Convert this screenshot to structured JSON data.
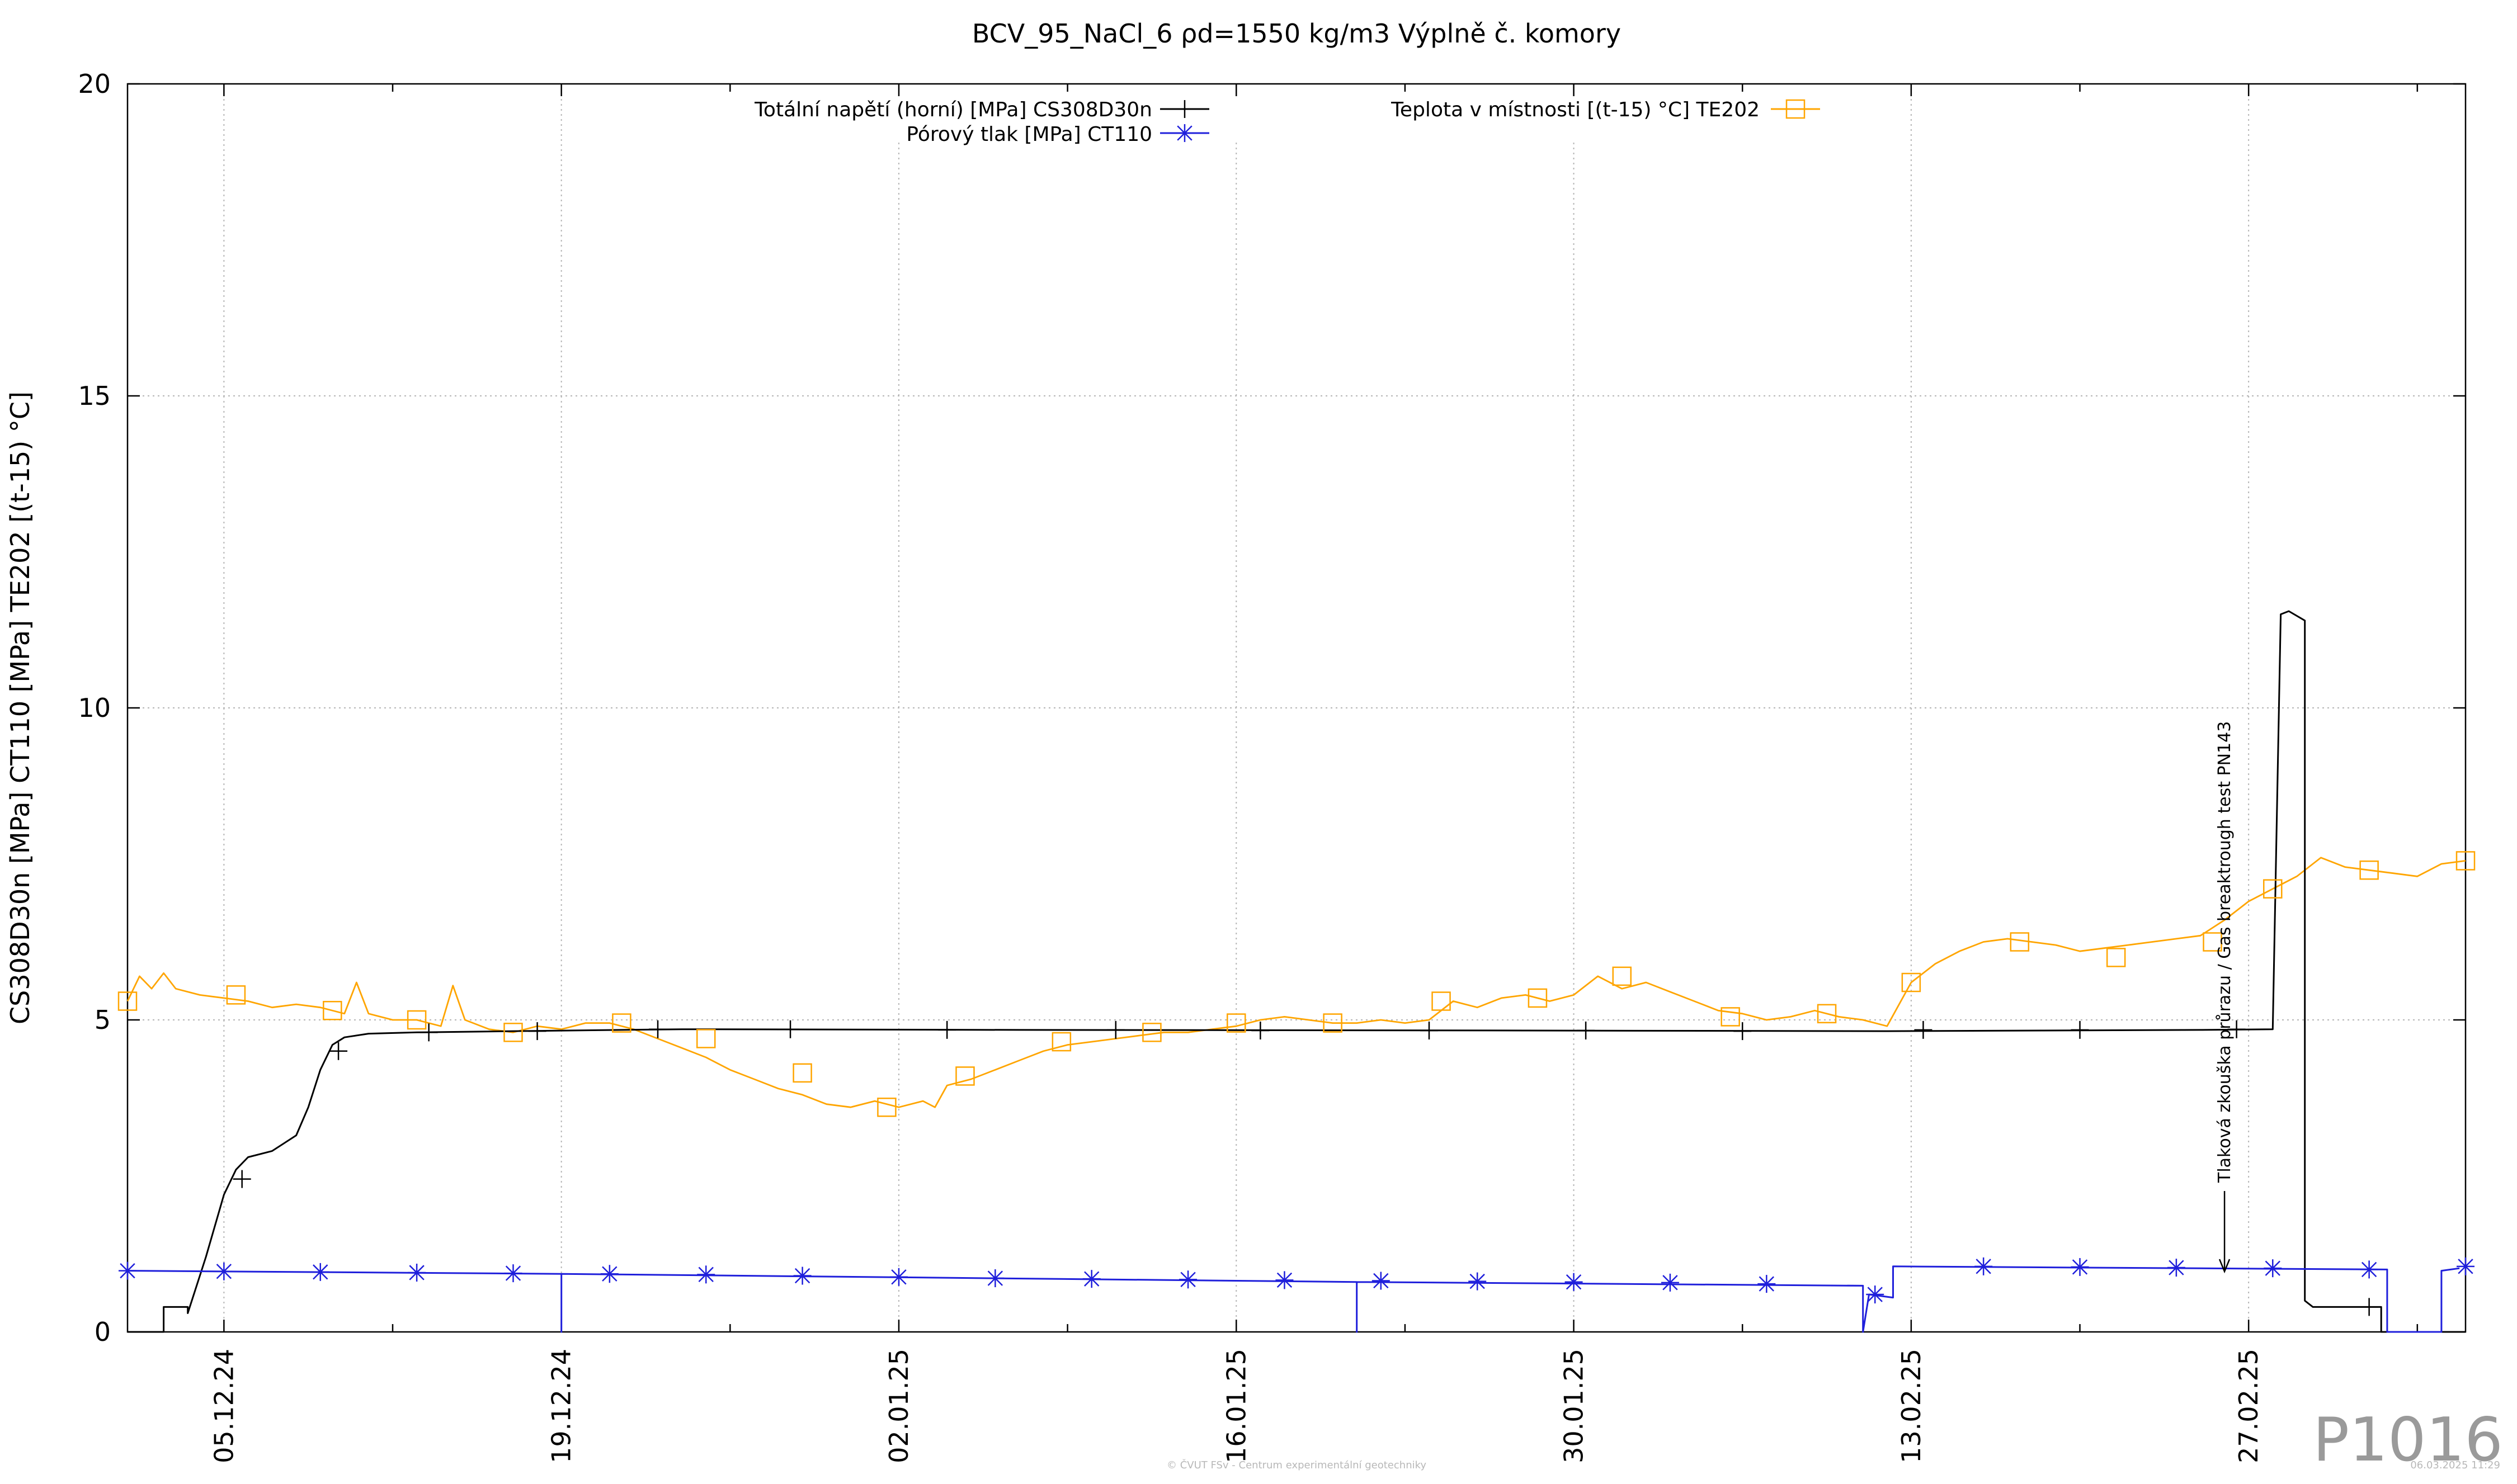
{
  "chart_data": {
    "type": "line",
    "title": "BCV_95_NaCl_6 ρd=1550 kg/m3 Výplně č. komory",
    "xlabel": "",
    "ylabel": "CS308D30n [MPa] CT110 [MPa] TE202 [(t-15) °C]",
    "xlim": [
      "2024-12-01",
      "2025-03-08"
    ],
    "ylim": [
      0,
      20
    ],
    "yticks": [
      0,
      5,
      10,
      15,
      20
    ],
    "xticks": [
      "2024-12-05",
      "2024-12-19",
      "2025-01-02",
      "2025-01-16",
      "2025-01-30",
      "2025-02-13",
      "2025-02-27"
    ],
    "xtick_labels": [
      "05.12.24",
      "19.12.24",
      "02.01.25",
      "16.01.25",
      "30.01.25",
      "13.02.25",
      "27.02.25"
    ],
    "grid": true,
    "legend_position": "top",
    "series": [
      {
        "name": "Totální napětí (horní) [MPa] CS308D30n",
        "color": "#000000",
        "marker": "plus",
        "x": [
          "2024-12-01",
          "2024-12-02 12:00",
          "2024-12-02 12:00",
          "2024-12-03 12:00",
          "2024-12-03 12:00",
          "2024-12-04 06:00",
          "2024-12-05 00:00",
          "2024-12-05 12:00",
          "2024-12-06 00:00",
          "2024-12-07 00:00",
          "2024-12-08 00:00",
          "2024-12-08 12:00",
          "2024-12-09 00:00",
          "2024-12-09 12:00",
          "2024-12-10 00:00",
          "2024-12-11 00:00",
          "2024-12-13 00:00",
          "2024-12-17 00:00",
          "2024-12-24 00:00",
          "2025-01-07 00:00",
          "2025-01-28 00:00",
          "2025-02-12 00:00",
          "2025-02-25 00:00",
          "2025-02-28 00:00",
          "2025-02-28 00:00",
          "2025-02-28 08:00",
          "2025-02-28 16:00",
          "2025-03-01 08:00",
          "2025-03-01 08:00",
          "2025-03-01 16:00",
          "2025-03-02 00:00",
          "2025-03-04 00:00",
          "2025-03-04 12:00",
          "2025-03-04 12:00",
          "2025-03-08 00:00"
        ],
        "values": [
          0.0,
          0.0,
          0.4,
          0.4,
          0.3,
          1.2,
          2.2,
          2.6,
          2.8,
          2.9,
          3.15,
          3.6,
          4.2,
          4.6,
          4.72,
          4.78,
          4.8,
          4.82,
          4.85,
          4.84,
          4.83,
          4.82,
          4.84,
          4.85,
          4.85,
          11.5,
          11.55,
          11.4,
          0.5,
          0.4,
          0.4,
          0.4,
          0.4,
          0.0,
          0.0
        ],
        "marker_x": [
          "2024-12-05 18:00",
          "2024-12-09 18:00",
          "2024-12-13 12:00",
          "2024-12-18 00:00",
          "2024-12-23 00:00",
          "2024-12-28 12:00",
          "2025-01-04 00:00",
          "2025-01-11 00:00",
          "2025-01-17 00:00",
          "2025-01-24 00:00",
          "2025-01-30 12:00",
          "2025-02-06 00:00",
          "2025-02-13 12:00",
          "2025-02-20 00:00",
          "2025-02-26 12:00",
          "2025-03-04 00:00"
        ],
        "marker_values": [
          2.45,
          4.5,
          4.8,
          4.82,
          4.85,
          4.85,
          4.84,
          4.84,
          4.83,
          4.83,
          4.83,
          4.82,
          4.84,
          4.84,
          4.85,
          0.4
        ]
      },
      {
        "name": "Pórový tlak [MPa] CT110",
        "color": "#1f1fdb",
        "marker": "asterisk",
        "x": [
          "2024-12-01",
          "2024-12-19",
          "2024-12-19",
          "2024-12-19",
          "2025-01-21",
          "2025-01-21",
          "2025-01-21",
          "2025-02-11",
          "2025-02-11",
          "2025-02-11 06:00",
          "2025-02-12 06:00",
          "2025-02-12 06:00",
          "2025-03-04 18:00",
          "2025-03-04 18:00",
          "2025-03-07 00:00",
          "2025-03-07 00:00",
          "2025-03-07 18:00"
        ],
        "values": [
          0.98,
          0.93,
          0.0,
          0.93,
          0.8,
          0.0,
          0.8,
          0.74,
          0.0,
          0.6,
          0.55,
          1.05,
          1.0,
          0.0,
          0.0,
          0.98,
          1.02
        ],
        "marker_x": [
          "2024-12-01",
          "2024-12-05",
          "2024-12-09",
          "2024-12-13",
          "2024-12-17",
          "2024-12-21",
          "2024-12-25",
          "2024-12-29",
          "2025-01-02",
          "2025-01-06",
          "2025-01-10",
          "2025-01-14",
          "2025-01-18",
          "2025-01-22",
          "2025-01-26",
          "2025-01-30",
          "2025-02-03",
          "2025-02-07",
          "2025-02-11 12:00",
          "2025-02-16",
          "2025-02-20",
          "2025-02-24",
          "2025-02-28",
          "2025-03-04",
          "2025-03-08"
        ],
        "marker_values": [
          0.98,
          0.97,
          0.96,
          0.95,
          0.94,
          0.93,
          0.92,
          0.9,
          0.88,
          0.86,
          0.85,
          0.84,
          0.83,
          0.82,
          0.81,
          0.8,
          0.79,
          0.77,
          0.6,
          1.05,
          1.04,
          1.03,
          1.02,
          1.0,
          1.05
        ]
      },
      {
        "name": "Teplota v místnosti [(t-15) °C] TE202",
        "color": "#ffa500",
        "marker": "square",
        "x": [
          "2024-12-01",
          "2024-12-01 12:00",
          "2024-12-02",
          "2024-12-02 12:00",
          "2024-12-03",
          "2024-12-04",
          "2024-12-05",
          "2024-12-06",
          "2024-12-07",
          "2024-12-08",
          "2024-12-09",
          "2024-12-10",
          "2024-12-10 12:00",
          "2024-12-11",
          "2024-12-12",
          "2024-12-13",
          "2024-12-14",
          "2024-12-14 12:00",
          "2024-12-15",
          "2024-12-16",
          "2024-12-17",
          "2024-12-18",
          "2024-12-19",
          "2024-12-20",
          "2024-12-21",
          "2024-12-22",
          "2024-12-23",
          "2024-12-24",
          "2024-12-25",
          "2024-12-26",
          "2024-12-27",
          "2024-12-28",
          "2024-12-29",
          "2024-12-30",
          "2024-12-31",
          "2025-01-01",
          "2025-01-02",
          "2025-01-03",
          "2025-01-03 12:00",
          "2025-01-04",
          "2025-01-05",
          "2025-01-06",
          "2025-01-07",
          "2025-01-08",
          "2025-01-09",
          "2025-01-10",
          "2025-01-11",
          "2025-01-12",
          "2025-01-13",
          "2025-01-14",
          "2025-01-15",
          "2025-01-16",
          "2025-01-17",
          "2025-01-18",
          "2025-01-19",
          "2025-01-20",
          "2025-01-21",
          "2025-01-22",
          "2025-01-23",
          "2025-01-24",
          "2025-01-25",
          "2025-01-26",
          "2025-01-27",
          "2025-01-28",
          "2025-01-29",
          "2025-01-30",
          "2025-01-31",
          "2025-02-01",
          "2025-02-02",
          "2025-02-03",
          "2025-02-04",
          "2025-02-05",
          "2025-02-06",
          "2025-02-07",
          "2025-02-08",
          "2025-02-09",
          "2025-02-10",
          "2025-02-11",
          "2025-02-12",
          "2025-02-13",
          "2025-02-14",
          "2025-02-15",
          "2025-02-16",
          "2025-02-17",
          "2025-02-18",
          "2025-02-19",
          "2025-02-20",
          "2025-02-21",
          "2025-02-22",
          "2025-02-23",
          "2025-02-24",
          "2025-02-25",
          "2025-02-26",
          "2025-02-27",
          "2025-02-28",
          "2025-03-01",
          "2025-03-02",
          "2025-03-03",
          "2025-03-04",
          "2025-03-05",
          "2025-03-06",
          "2025-03-07",
          "2025-03-08"
        ],
        "values": [
          5.3,
          5.7,
          5.5,
          5.75,
          5.5,
          5.4,
          5.35,
          5.3,
          5.2,
          5.25,
          5.2,
          5.1,
          5.6,
          5.1,
          5.0,
          5.0,
          4.9,
          5.55,
          5.0,
          4.85,
          4.8,
          4.9,
          4.85,
          4.95,
          4.95,
          4.85,
          4.7,
          4.55,
          4.4,
          4.2,
          4.05,
          3.9,
          3.8,
          3.65,
          3.6,
          3.7,
          3.6,
          3.7,
          3.6,
          3.95,
          4.05,
          4.2,
          4.35,
          4.5,
          4.6,
          4.65,
          4.7,
          4.75,
          4.8,
          4.8,
          4.85,
          4.9,
          5.0,
          5.05,
          5.0,
          4.95,
          4.95,
          5.0,
          4.95,
          5.0,
          5.3,
          5.2,
          5.35,
          5.4,
          5.3,
          5.4,
          5.7,
          5.5,
          5.6,
          5.45,
          5.3,
          5.15,
          5.1,
          5.0,
          5.05,
          5.15,
          5.05,
          5.0,
          4.9,
          5.6,
          5.9,
          6.1,
          6.25,
          6.3,
          6.25,
          6.2,
          6.1,
          6.15,
          6.2,
          6.25,
          6.3,
          6.35,
          6.6,
          6.9,
          7.1,
          7.3,
          7.6,
          7.45,
          7.4,
          7.35,
          7.3,
          7.5,
          7.55
        ],
        "marker_x": [
          "2024-12-01",
          "2024-12-05 12:00",
          "2024-12-09 12:00",
          "2024-12-13",
          "2024-12-17",
          "2024-12-21 12:00",
          "2024-12-25",
          "2024-12-29",
          "2025-01-01 12:00",
          "2025-01-04 18:00",
          "2025-01-08 18:00",
          "2025-01-12 12:00",
          "2025-01-16",
          "2025-01-20",
          "2025-01-24 12:00",
          "2025-01-28 12:00",
          "2025-02-01",
          "2025-02-05 12:00",
          "2025-02-09 12:00",
          "2025-02-13",
          "2025-02-17 12:00",
          "2025-02-21 12:00",
          "2025-02-25 12:00",
          "2025-02-28",
          "2025-03-04",
          "2025-03-08"
        ],
        "marker_values": [
          5.3,
          5.4,
          5.15,
          5.0,
          4.8,
          4.95,
          4.7,
          4.15,
          3.6,
          4.1,
          4.65,
          4.8,
          4.95,
          4.95,
          5.3,
          5.35,
          5.7,
          5.05,
          5.1,
          5.6,
          6.25,
          6.0,
          6.25,
          7.1,
          7.4,
          7.55
        ]
      }
    ],
    "annotations": [
      {
        "text": "Tlaková zkouška průrazu / Gas breaktrough test PN143",
        "x": "2025-02-26 00:00",
        "y_tip": 0.95,
        "orientation": "vertical"
      }
    ]
  },
  "footer": {
    "credit": "© ČVUT FSv - Centrum experimentální geotechniky",
    "timestamp": "06.03.2025 11:29",
    "panel_id": "P1016"
  }
}
